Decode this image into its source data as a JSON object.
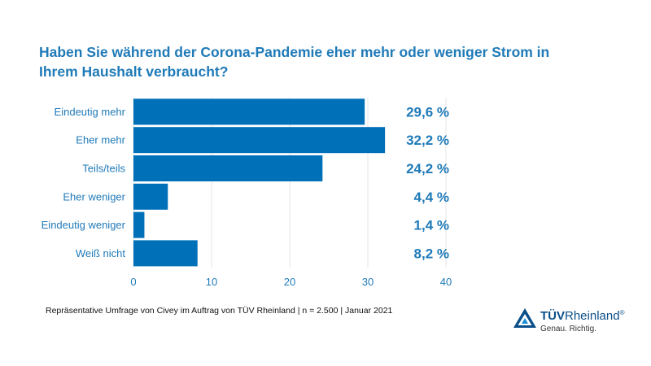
{
  "chart_data": {
    "type": "bar",
    "orientation": "horizontal",
    "title": "Haben Sie während der Corona-Pandemie eher mehr oder weniger Strom in Ihrem Haushalt verbraucht?",
    "categories": [
      "Eindeutig mehr",
      "Eher mehr",
      "Teils/teils",
      "Eher weniger",
      "Eindeutig weniger",
      "Weiß nicht"
    ],
    "values": [
      29.6,
      32.2,
      24.2,
      4.4,
      1.4,
      8.2
    ],
    "value_labels": [
      "29,6 %",
      "32,2 %",
      "24,2 %",
      "4,4 %",
      "1,4 %",
      "8,2 %"
    ],
    "xlim": [
      0,
      40
    ],
    "xticks": [
      0,
      10,
      20,
      30,
      40
    ],
    "grid": true,
    "colors": {
      "bar": "#0070b8",
      "label": "#1f7ab8",
      "title": "#1f7ab8",
      "grid": "#e6e6e6"
    }
  },
  "footnote": "Repräsentative Umfrage von Civey im Auftrag von TÜV Rheinland | n = 2.500 | Januar 2021",
  "logo": {
    "brand_bold": "TÜV",
    "brand_rest": "Rheinland",
    "registered": "®",
    "tagline": "Genau. Richtig.",
    "icon": "triangle-logo-icon"
  }
}
